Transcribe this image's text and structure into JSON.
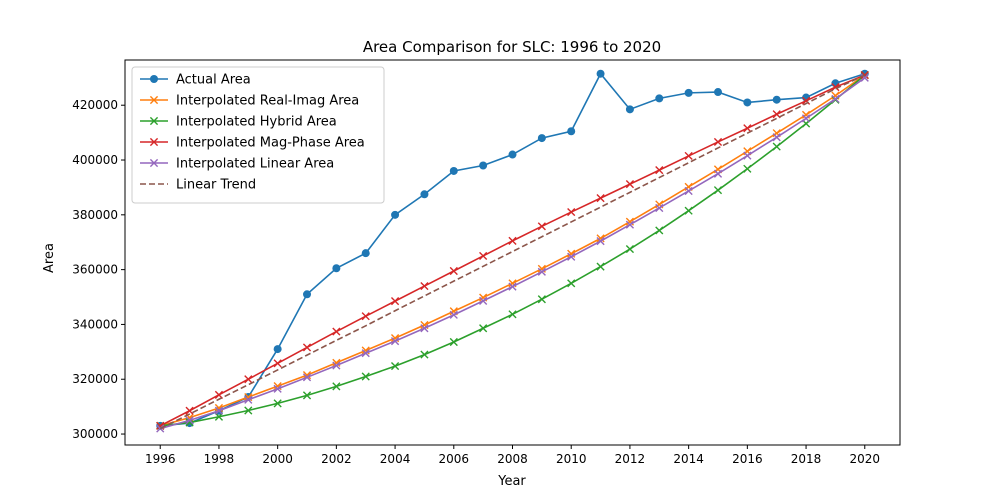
{
  "chart_data": {
    "type": "line",
    "title": "Area Comparison for SLC: 1996 to 2020",
    "xlabel": "Year",
    "ylabel": "Area",
    "xlim": [
      1994.8,
      2021.2
    ],
    "ylim": [
      296000,
      436500
    ],
    "x_ticks": [
      "1996",
      "1998",
      "2000",
      "2002",
      "2004",
      "2006",
      "2008",
      "2010",
      "2012",
      "2014",
      "2016",
      "2018",
      "2020"
    ],
    "y_ticks": [
      "300000",
      "320000",
      "340000",
      "360000",
      "380000",
      "400000",
      "420000"
    ],
    "grid": false,
    "legend_position": "upper-left",
    "x": [
      1996,
      1997,
      1998,
      1999,
      2000,
      2001,
      2002,
      2003,
      2004,
      2005,
      2006,
      2007,
      2008,
      2009,
      2010,
      2011,
      2012,
      2013,
      2014,
      2015,
      2016,
      2017,
      2018,
      2019,
      2020
    ],
    "series": [
      {
        "name": "Actual Area",
        "color": "#1f77b4",
        "marker": "circle",
        "style": "solid",
        "values": [
          303000,
          304000,
          308500,
          313500,
          331000,
          351000,
          360500,
          366000,
          380000,
          387500,
          396000,
          398000,
          402000,
          408000,
          410500,
          431500,
          418500,
          422500,
          424500,
          424800,
          421000,
          422000,
          422800,
          428000,
          431500
        ]
      },
      {
        "name": "Interpolated Real-Imag Area",
        "color": "#ff7f0e",
        "marker": "x",
        "style": "solid",
        "values": [
          303000,
          306000,
          309500,
          313500,
          317500,
          321500,
          326000,
          330500,
          335000,
          339800,
          344800,
          349800,
          355000,
          360300,
          365800,
          371400,
          377500,
          383800,
          390200,
          396600,
          403200,
          409800,
          416500,
          423500,
          431000
        ]
      },
      {
        "name": "Interpolated Hybrid Area",
        "color": "#2ca02c",
        "marker": "x",
        "style": "solid",
        "values": [
          303000,
          304200,
          306300,
          308600,
          311200,
          314100,
          317400,
          321000,
          324800,
          329000,
          333600,
          338600,
          343700,
          349200,
          355000,
          361100,
          367500,
          374300,
          381500,
          389000,
          396800,
          404900,
          413300,
          422000,
          431000
        ]
      },
      {
        "name": "Interpolated Mag-Phase Area",
        "color": "#d62728",
        "marker": "x",
        "style": "solid",
        "values": [
          303000,
          308500,
          314300,
          320000,
          325800,
          331600,
          337400,
          343000,
          348500,
          354000,
          359500,
          365000,
          370500,
          375800,
          381000,
          386100,
          391200,
          396300,
          401500,
          406600,
          411600,
          416700,
          421600,
          426600,
          431000
        ]
      },
      {
        "name": "Interpolated Linear Area",
        "color": "#9467bd",
        "marker": "x",
        "style": "solid",
        "values": [
          302000,
          305000,
          308500,
          312500,
          316500,
          320700,
          325000,
          329500,
          333900,
          338600,
          343500,
          348600,
          353800,
          359200,
          364700,
          370400,
          376400,
          382500,
          388700,
          395000,
          401600,
          408300,
          415200,
          422300,
          430000
        ]
      },
      {
        "name": "Linear Trend",
        "color": "#8c564b",
        "marker": "none",
        "style": "dashed",
        "values": [
          302000,
          307300,
          312700,
          318000,
          323400,
          328800,
          334200,
          339500,
          345000,
          350400,
          355800,
          361200,
          366600,
          372000,
          377400,
          382800,
          388200,
          393600,
          399000,
          404400,
          409800,
          415200,
          420600,
          426000,
          431000
        ]
      }
    ]
  }
}
